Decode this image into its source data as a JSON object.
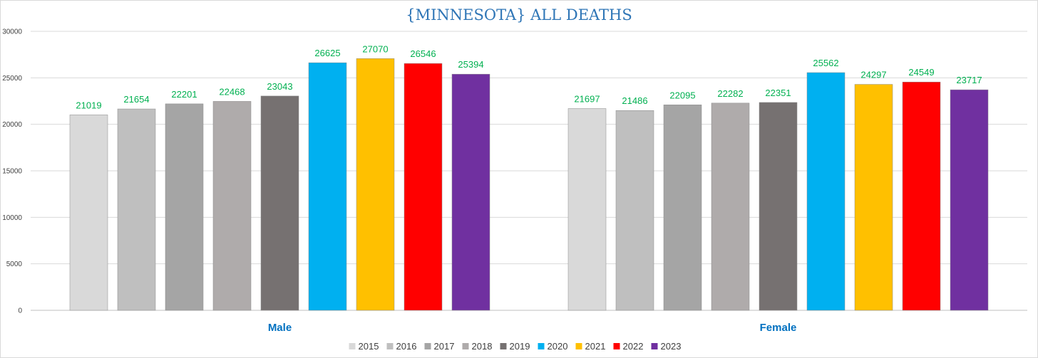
{
  "chart_data": {
    "type": "bar",
    "title": "{MINNESOTA}   ALL DEATHS",
    "xlabel": "",
    "ylabel": "",
    "ylim": [
      0,
      30000
    ],
    "yticks": [
      0,
      5000,
      10000,
      15000,
      20000,
      25000,
      30000
    ],
    "grid": true,
    "legend_position": "bottom",
    "categories": [
      "Male",
      "Female"
    ],
    "series": [
      {
        "name": "2015",
        "color": "#d9d9d9",
        "values": [
          21019,
          21697
        ]
      },
      {
        "name": "2016",
        "color": "#bfbfbf",
        "values": [
          21654,
          21486
        ]
      },
      {
        "name": "2017",
        "color": "#a5a5a5",
        "values": [
          22201,
          22095
        ]
      },
      {
        "name": "2018",
        "color": "#afabab",
        "values": [
          22468,
          22282
        ]
      },
      {
        "name": "2019",
        "color": "#767171",
        "values": [
          23043,
          22351
        ]
      },
      {
        "name": "2020",
        "color": "#00b0f0",
        "values": [
          26625,
          25562
        ]
      },
      {
        "name": "2021",
        "color": "#ffc000",
        "values": [
          27070,
          24297
        ]
      },
      {
        "name": "2022",
        "color": "#ff0000",
        "values": [
          26546,
          24549
        ]
      },
      {
        "name": "2023",
        "color": "#7030a0",
        "values": [
          25394,
          23717
        ]
      }
    ],
    "colors": {
      "title": "#2e75b6",
      "data_labels": "#00b050",
      "category_labels": "#0070c0"
    }
  }
}
